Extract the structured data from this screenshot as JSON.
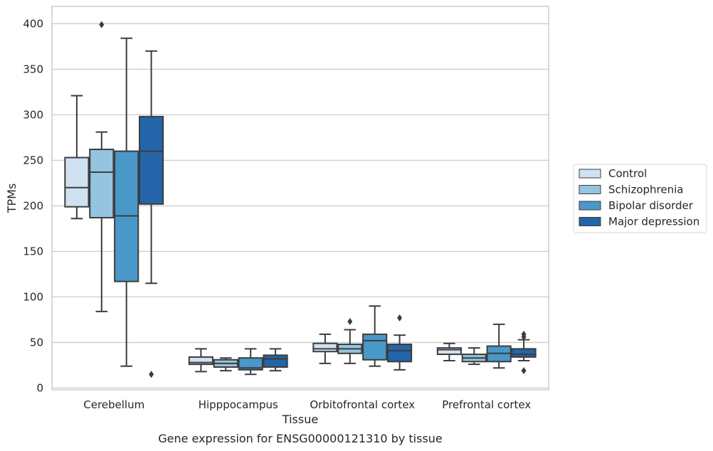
{
  "chart_data": {
    "type": "box",
    "title": "Gene expression for ENSG00000121310 by tissue",
    "xlabel": "Tissue",
    "ylabel": "TPMs",
    "ylim": [
      -2,
      419
    ],
    "yticks": [
      0,
      50,
      100,
      150,
      200,
      250,
      300,
      350,
      400
    ],
    "grid": "horizontal",
    "legend_position": "right",
    "categories": [
      "Cerebellum",
      "Hipppocampus",
      "Orbitofrontal cortex",
      "Prefrontal cortex"
    ],
    "series": [
      {
        "name": "Control",
        "color": "#d0e1f2",
        "boxes": [
          {
            "whislo": 186,
            "q1": 199,
            "med": 220,
            "q3": 253,
            "whishi": 321,
            "fliers": []
          },
          {
            "whislo": 18,
            "q1": 26,
            "med": 28,
            "q3": 34,
            "whishi": 43,
            "fliers": []
          },
          {
            "whislo": 27,
            "q1": 40,
            "med": 43,
            "q3": 49,
            "whishi": 59,
            "fliers": []
          },
          {
            "whislo": 30,
            "q1": 37,
            "med": 42,
            "q3": 44,
            "whishi": 49,
            "fliers": []
          }
        ]
      },
      {
        "name": "Schizophrenia",
        "color": "#94c4df",
        "boxes": [
          {
            "whislo": 84,
            "q1": 187,
            "med": 237,
            "q3": 262,
            "whishi": 281,
            "fliers": [
              399
            ]
          },
          {
            "whislo": 19,
            "q1": 23,
            "med": 27,
            "q3": 31,
            "whishi": 33,
            "fliers": []
          },
          {
            "whislo": 27,
            "q1": 38,
            "med": 43,
            "q3": 48,
            "whishi": 64,
            "fliers": [
              73
            ]
          },
          {
            "whislo": 26,
            "q1": 29,
            "med": 33,
            "q3": 37,
            "whishi": 44,
            "fliers": []
          }
        ]
      },
      {
        "name": "Bipolar disorder",
        "color": "#4a98c9",
        "boxes": [
          {
            "whislo": 24,
            "q1": 117,
            "med": 189,
            "q3": 260,
            "whishi": 384,
            "fliers": []
          },
          {
            "whislo": 15,
            "q1": 20,
            "med": 22,
            "q3": 33,
            "whishi": 43,
            "fliers": []
          },
          {
            "whislo": 24,
            "q1": 31,
            "med": 52,
            "q3": 59,
            "whishi": 90,
            "fliers": []
          },
          {
            "whislo": 22,
            "q1": 29,
            "med": 38,
            "q3": 46,
            "whishi": 70,
            "fliers": []
          }
        ]
      },
      {
        "name": "Major depression",
        "color": "#2365a8",
        "boxes": [
          {
            "whislo": 115,
            "q1": 202,
            "med": 260,
            "q3": 298,
            "whishi": 370,
            "fliers": [
              15
            ]
          },
          {
            "whislo": 19,
            "q1": 23,
            "med": 32,
            "q3": 36,
            "whishi": 43,
            "fliers": []
          },
          {
            "whislo": 20,
            "q1": 29,
            "med": 41,
            "q3": 48,
            "whishi": 58,
            "fliers": [
              77
            ]
          },
          {
            "whislo": 30,
            "q1": 34,
            "med": 37,
            "q3": 43,
            "whishi": 53,
            "fliers": [
              19,
              56,
              59
            ]
          }
        ]
      }
    ]
  }
}
